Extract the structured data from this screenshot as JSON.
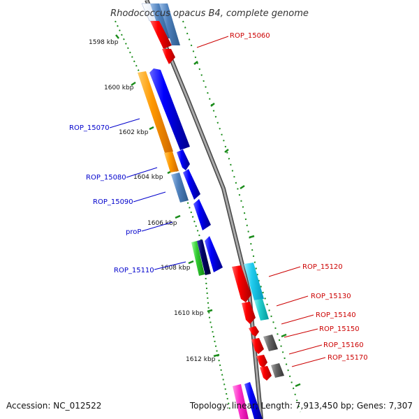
{
  "title": "Rhodococcus opacus B4, complete genome",
  "footer": {
    "accession": "Accession: NC_012522",
    "info": "Topology: linear; Length: 7,913,450 bp; Genes: 7,307"
  },
  "ticks": [
    "1598 kbp",
    "1600 kbp",
    "1602 kbp",
    "1604 kbp",
    "1606 kbp",
    "1608 kbp",
    "1610 kbp",
    "1612 kbp"
  ],
  "genes": [
    {
      "label": "ROP_15060",
      "color": "#ff0000"
    },
    {
      "label": "ROP_15070",
      "color": "#0000cc"
    },
    {
      "label": "ROP_15080",
      "color": "#0000cc"
    },
    {
      "label": "ROP_15090",
      "color": "#0000cc"
    },
    {
      "label": "proP",
      "color": "#0000cc"
    },
    {
      "label": "ROP_15110",
      "color": "#0000cc"
    },
    {
      "label": "ROP_15120",
      "color": "#ff0000"
    },
    {
      "label": "ROP_15130",
      "color": "#ff0000"
    },
    {
      "label": "ROP_15140",
      "color": "#ff0000"
    },
    {
      "label": "ROP_15150",
      "color": "#ff0000"
    },
    {
      "label": "ROP_15160",
      "color": "#ff0000"
    },
    {
      "label": "ROP_15170",
      "color": "#ff0000"
    }
  ],
  "colors": {
    "backbone": "#888888",
    "tick": "#2e8b2e",
    "cds_forward": "#0000ff",
    "cds_reverse": "#ff0000",
    "cog_orange": "#ff9900",
    "cog_steelblue": "#4f81bd",
    "cog_cyan": "#22ccee",
    "cog_green": "#33cc33",
    "cog_navy": "#000066",
    "cog_gray": "#666666",
    "cog_magenta": "#ff33cc"
  }
}
